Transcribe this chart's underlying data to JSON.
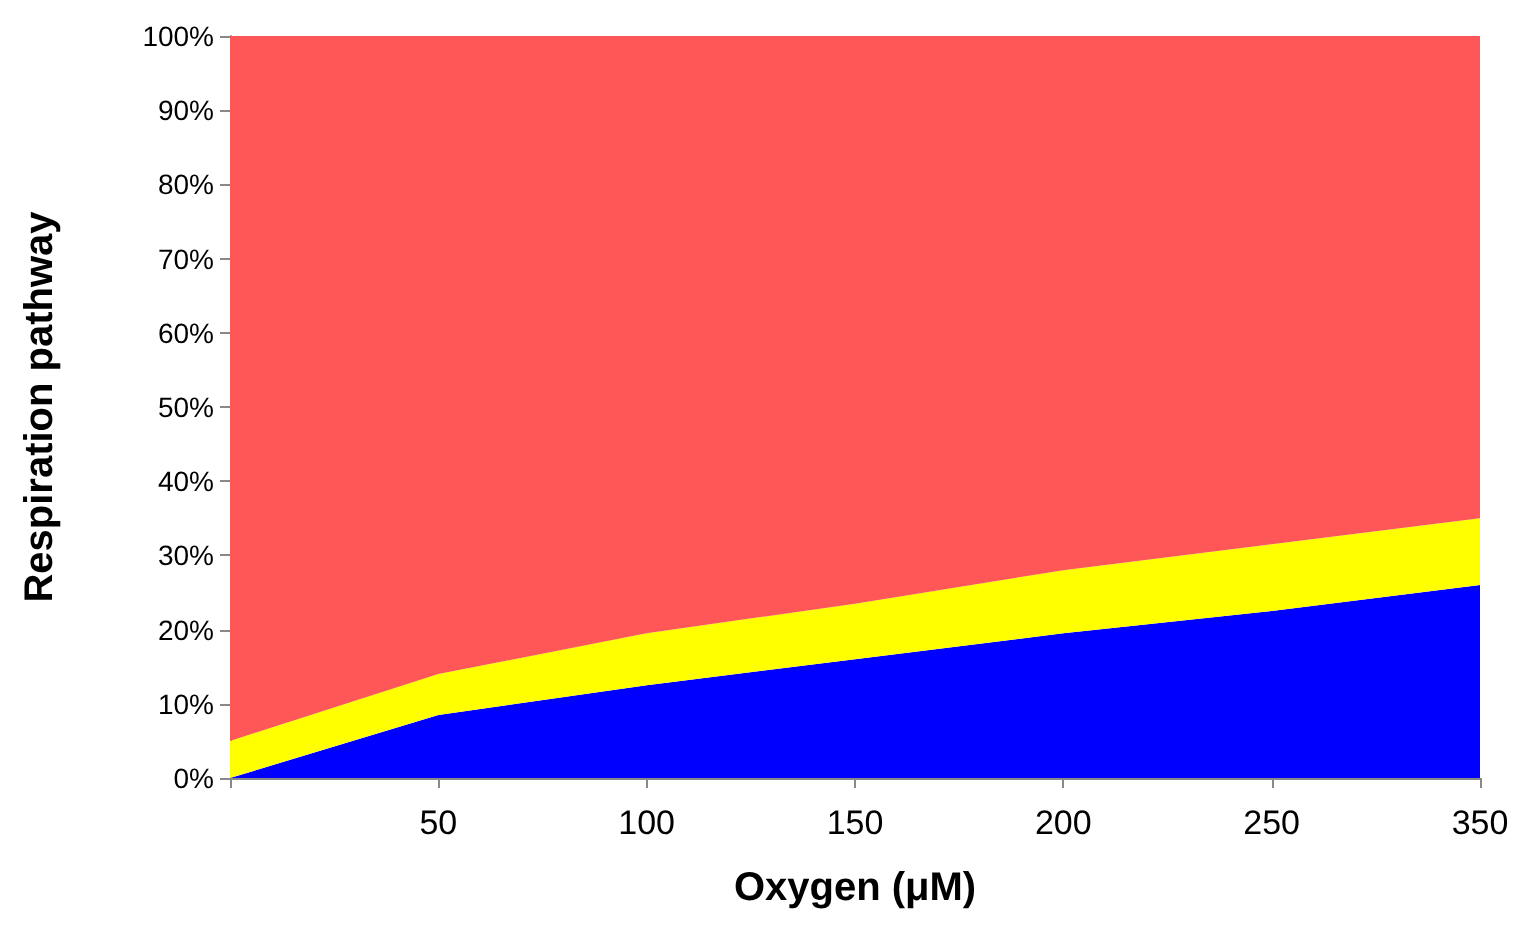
{
  "chart_data": {
    "type": "area",
    "stacked": true,
    "xlabel": "Oxygen (μM)",
    "ylabel": "Respiration pathway",
    "categories": [
      null,
      "50",
      "100",
      "150",
      "200",
      "250",
      "350"
    ],
    "series": [
      {
        "color": "#0000ff",
        "values": [
          0,
          8.5,
          12.5,
          16,
          19.5,
          22.5,
          26
        ]
      },
      {
        "color": "#ffff00",
        "values": [
          5,
          5.5,
          7,
          7.5,
          8.5,
          9,
          9
        ]
      },
      {
        "color": "#ff5757",
        "values": [
          95,
          86,
          80.5,
          76.5,
          72,
          68.5,
          65
        ]
      }
    ],
    "ylim": [
      0,
      100
    ],
    "yticks": [
      {
        "value": 0,
        "label": "0%"
      },
      {
        "value": 10,
        "label": "10%"
      },
      {
        "value": 20,
        "label": "20%"
      },
      {
        "value": 30,
        "label": "30%"
      },
      {
        "value": 40,
        "label": "40%"
      },
      {
        "value": 50,
        "label": "50%"
      },
      {
        "value": 60,
        "label": "60%"
      },
      {
        "value": 70,
        "label": "70%"
      },
      {
        "value": 80,
        "label": "80%"
      },
      {
        "value": 90,
        "label": "90%"
      },
      {
        "value": 100,
        "label": "100%"
      }
    ],
    "grid": false,
    "legend": false
  }
}
